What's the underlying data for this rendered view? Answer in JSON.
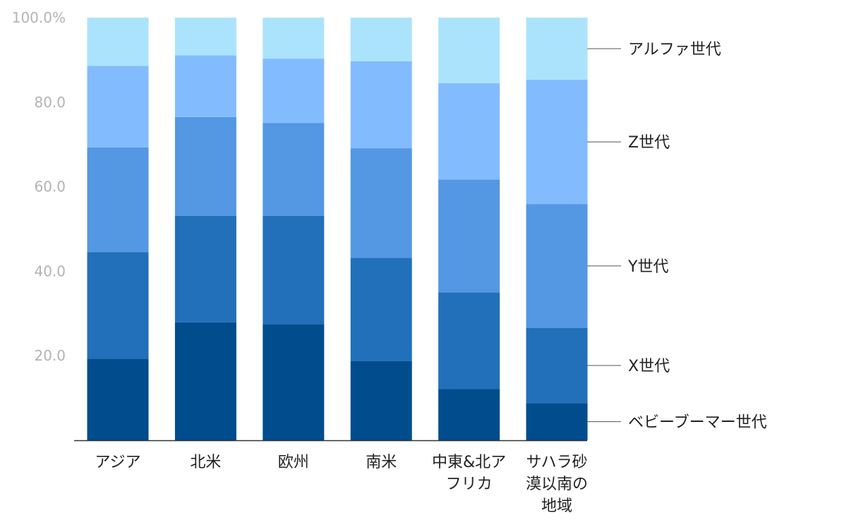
{
  "chart_data": {
    "type": "bar",
    "stacked": true,
    "categories": [
      [
        "アジア"
      ],
      [
        "北米"
      ],
      [
        "欧州"
      ],
      [
        "南米"
      ],
      [
        "中東&北ア",
        "フリカ"
      ],
      [
        "サハラ砂",
        "漠以南の",
        "地域"
      ]
    ],
    "series": [
      {
        "name": "ベビーブーマー世代",
        "color": "#004c8c",
        "values": [
          19.3,
          27.9,
          27.5,
          18.7,
          12.1,
          8.8
        ]
      },
      {
        "name": "X世代",
        "color": "#2170b9",
        "values": [
          25.2,
          25.2,
          25.6,
          24.5,
          22.9,
          17.8
        ]
      },
      {
        "name": "Y世代",
        "color": "#5497e3",
        "values": [
          24.8,
          23.4,
          22.0,
          25.9,
          26.7,
          29.3
        ]
      },
      {
        "name": "Z世代",
        "color": "#82bcff",
        "values": [
          19.3,
          14.6,
          15.2,
          20.6,
          22.8,
          29.4
        ]
      },
      {
        "name": "アルファ世代",
        "color": "#abe3fd",
        "values": [
          11.4,
          8.9,
          9.7,
          10.3,
          15.5,
          14.7
        ]
      }
    ],
    "ylim": [
      0,
      100
    ],
    "yticks": [
      {
        "value": 20,
        "label": "20.0"
      },
      {
        "value": 40,
        "label": "40.0"
      },
      {
        "value": 60,
        "label": "60.0"
      },
      {
        "value": 80,
        "label": "80.0"
      },
      {
        "value": 100,
        "label": "100.0%"
      }
    ],
    "legend_placement": "right",
    "grid": false
  }
}
